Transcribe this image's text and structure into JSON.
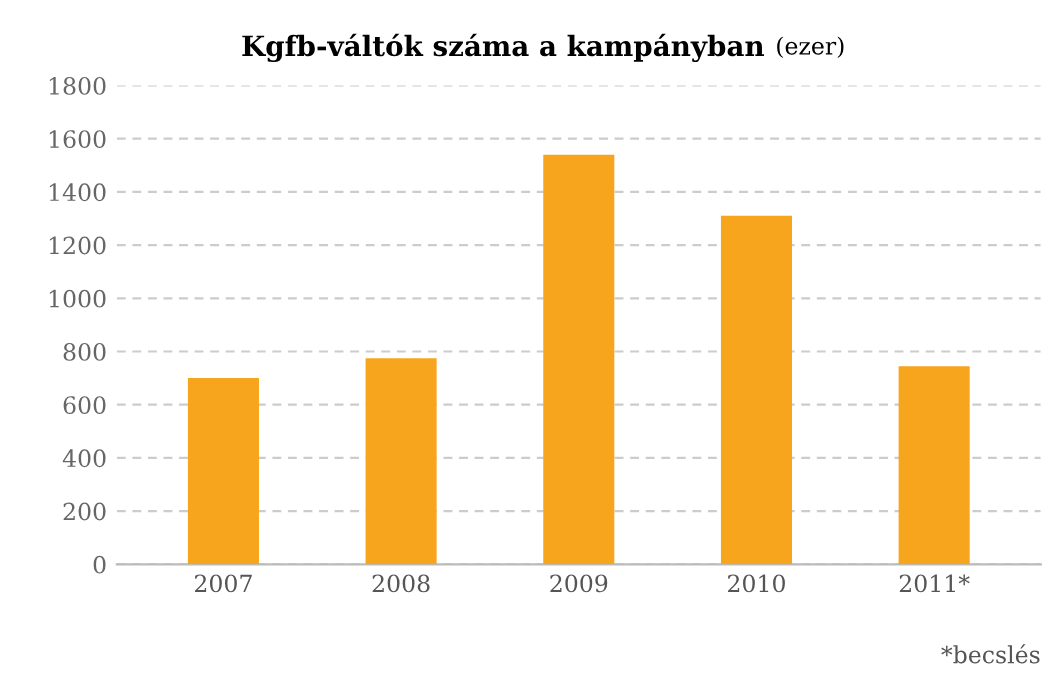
{
  "chart_data": {
    "type": "bar",
    "title": "Kgfb-váltók száma a kampányban",
    "subtitle": "(ezer)",
    "categories": [
      "2007",
      "2008",
      "2009",
      "2010",
      "2011*"
    ],
    "values": [
      700,
      775,
      1540,
      1310,
      745
    ],
    "color": "#f7a51c",
    "ylim": [
      0,
      1800
    ],
    "yticks": [
      0,
      200,
      400,
      600,
      800,
      1000,
      1200,
      1400,
      1600,
      1800
    ],
    "grid": "y",
    "legend": false,
    "annotations": [
      "*becslés"
    ]
  }
}
